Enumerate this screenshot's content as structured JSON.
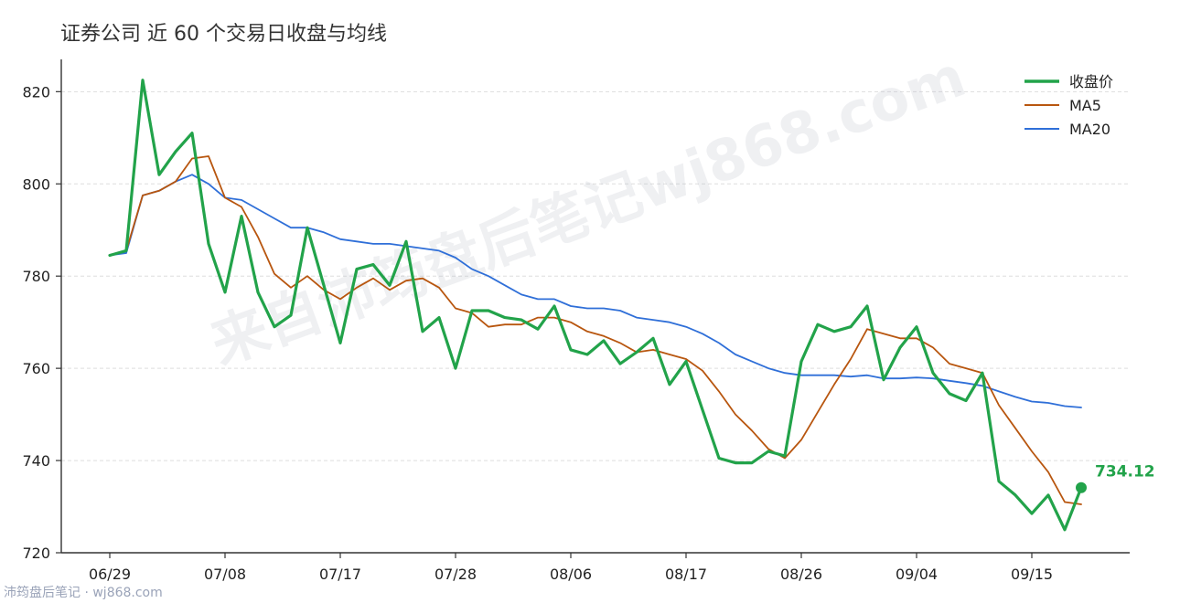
{
  "chart_data": {
    "type": "line",
    "title": "证券公司 近 60 个交易日收盘与均线",
    "xlabel": "",
    "ylabel": "",
    "ylim": [
      720,
      827
    ],
    "yticks": [
      720,
      740,
      760,
      780,
      800,
      820
    ],
    "x_tick_labels": [
      "06/29",
      "07/08",
      "07/17",
      "07/28",
      "08/06",
      "08/17",
      "08/26",
      "09/04",
      "09/15"
    ],
    "x_tick_indices": [
      0,
      7,
      14,
      21,
      28,
      35,
      42,
      49,
      56
    ],
    "legend_position": "top-right",
    "grid": "horizontal-dashed",
    "last_value_label": "734.12",
    "colors": {
      "close": "#22a34a",
      "ma5": "#b8560f",
      "ma20": "#2f6fd8"
    },
    "series": [
      {
        "name": "收盘价",
        "key": "close",
        "values": [
          784.5,
          785.5,
          822.5,
          802.0,
          807.0,
          811.0,
          787.0,
          776.5,
          793.0,
          776.5,
          769.0,
          771.5,
          790.5,
          778.0,
          765.5,
          781.5,
          782.5,
          778.0,
          787.5,
          768.0,
          771.0,
          760.0,
          772.5,
          772.5,
          771.0,
          770.5,
          768.5,
          773.5,
          764.0,
          763.0,
          766.0,
          761.0,
          763.5,
          766.5,
          756.5,
          761.5,
          751.0,
          740.5,
          739.5,
          739.5,
          742.0,
          741.0,
          761.5,
          769.5,
          768.0,
          769.0,
          773.5,
          757.5,
          764.5,
          769.0,
          759.0,
          754.5,
          753.0,
          759.0,
          735.5,
          732.5,
          728.5,
          732.5,
          725.0,
          734.12
        ]
      },
      {
        "name": "MA5",
        "key": "ma5",
        "values": [
          784.5,
          785.5,
          797.5,
          798.5,
          800.5,
          805.5,
          806.0,
          797.0,
          795.0,
          788.5,
          780.5,
          777.5,
          780.0,
          777.0,
          775.0,
          777.5,
          779.5,
          777.0,
          779.0,
          779.5,
          777.5,
          773.0,
          772.0,
          769.0,
          769.5,
          769.5,
          771.0,
          771.0,
          770.0,
          768.0,
          767.0,
          765.5,
          763.5,
          764.0,
          763.0,
          762.0,
          759.5,
          755.0,
          750.0,
          746.5,
          742.5,
          740.5,
          744.5,
          750.5,
          756.5,
          762.0,
          768.5,
          767.5,
          766.5,
          766.5,
          764.5,
          761.0,
          760.0,
          759.0,
          752.0,
          747.0,
          742.0,
          737.5,
          731.0,
          730.5
        ]
      },
      {
        "name": "MA20",
        "key": "ma20",
        "values": [
          784.5,
          785.0,
          797.5,
          798.5,
          800.5,
          802.0,
          800.0,
          797.0,
          796.5,
          794.5,
          792.5,
          790.5,
          790.5,
          789.5,
          788.0,
          787.5,
          787.0,
          787.0,
          786.5,
          786.0,
          785.5,
          784.0,
          781.5,
          780.0,
          778.0,
          776.0,
          775.0,
          775.0,
          773.5,
          773.0,
          773.0,
          772.5,
          771.0,
          770.5,
          770.0,
          769.0,
          767.5,
          765.5,
          763.0,
          761.5,
          760.0,
          759.0,
          758.5,
          758.5,
          758.5,
          758.2,
          758.5,
          757.8,
          757.8,
          758.0,
          757.8,
          757.3,
          756.8,
          756.2,
          755.0,
          753.8,
          752.8,
          752.5,
          751.8,
          751.5
        ]
      }
    ]
  },
  "watermark": {
    "text": "来自沛筠盘后笔记wj868.com"
  },
  "footer": {
    "text": "沛筠盘后笔记 · wj868.com"
  }
}
